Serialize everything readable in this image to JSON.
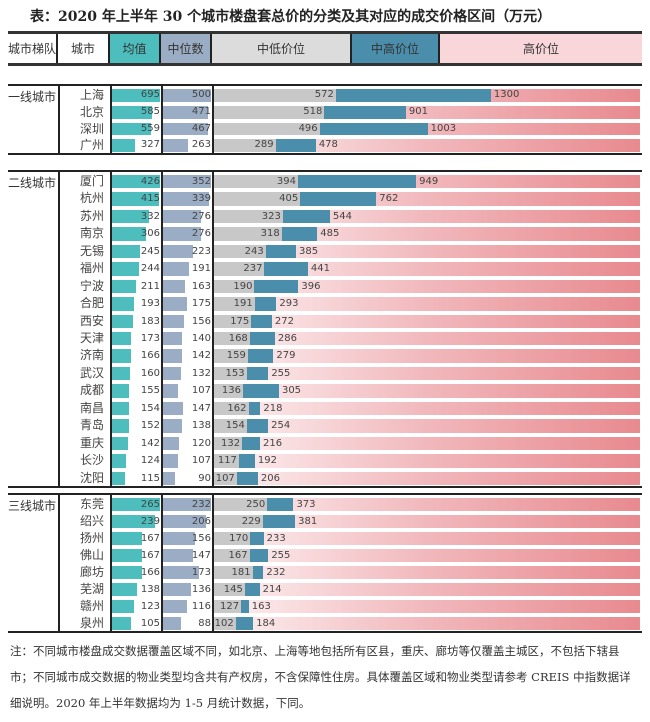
{
  "title": "表：2020 年上半年 30 个城市楼盘套总价的分类及其对应的成交价格区间（万元）",
  "chart_data": {
    "type": "bar",
    "title": "表：2020 年上半年 30 个城市楼盘套总价的分类及其对应的成交价格区间（万元）",
    "columns": [
      "城市梯队",
      "城市",
      "均值",
      "中位数",
      "中低价位",
      "中高价位",
      "高价位"
    ],
    "colors": {
      "mean": "#4dbdbd",
      "median": "#9badc4",
      "low": "#c8c8c8",
      "midhigh": "#4b8eab",
      "high": "#f0a6ab"
    },
    "groups": [
      {
        "tier": "一线城市",
        "rows": [
          {
            "city": "上海",
            "mean": 695,
            "median": 500,
            "low": 572,
            "high": 1300
          },
          {
            "city": "北京",
            "mean": 585,
            "median": 471,
            "low": 518,
            "high": 901
          },
          {
            "city": "深圳",
            "mean": 559,
            "median": 467,
            "low": 496,
            "high": 1003
          },
          {
            "city": "广州",
            "mean": 327,
            "median": 263,
            "low": 289,
            "high": 478
          }
        ]
      },
      {
        "tier": "二线城市",
        "rows": [
          {
            "city": "厦门",
            "mean": 426,
            "median": 352,
            "low": 394,
            "high": 949
          },
          {
            "city": "杭州",
            "mean": 415,
            "median": 339,
            "low": 405,
            "high": 762
          },
          {
            "city": "苏州",
            "mean": 332,
            "median": 276,
            "low": 323,
            "high": 544
          },
          {
            "city": "南京",
            "mean": 306,
            "median": 276,
            "low": 318,
            "high": 485
          },
          {
            "city": "无锡",
            "mean": 245,
            "median": 223,
            "low": 243,
            "high": 385
          },
          {
            "city": "福州",
            "mean": 244,
            "median": 191,
            "low": 237,
            "high": 441
          },
          {
            "city": "宁波",
            "mean": 211,
            "median": 163,
            "low": 190,
            "high": 396
          },
          {
            "city": "合肥",
            "mean": 193,
            "median": 175,
            "low": 191,
            "high": 293
          },
          {
            "city": "西安",
            "mean": 183,
            "median": 156,
            "low": 175,
            "high": 272
          },
          {
            "city": "天津",
            "mean": 173,
            "median": 140,
            "low": 168,
            "high": 286
          },
          {
            "city": "济南",
            "mean": 166,
            "median": 142,
            "low": 159,
            "high": 279
          },
          {
            "city": "武汉",
            "mean": 160,
            "median": 132,
            "low": 153,
            "high": 255
          },
          {
            "city": "成都",
            "mean": 155,
            "median": 107,
            "low": 136,
            "high": 305
          },
          {
            "city": "南昌",
            "mean": 154,
            "median": 147,
            "low": 162,
            "high": 218
          },
          {
            "city": "青岛",
            "mean": 152,
            "median": 138,
            "low": 154,
            "high": 254
          },
          {
            "city": "重庆",
            "mean": 142,
            "median": 120,
            "low": 132,
            "high": 216
          },
          {
            "city": "长沙",
            "mean": 124,
            "median": 107,
            "low": 117,
            "high": 192
          },
          {
            "city": "沈阳",
            "mean": 115,
            "median": 90,
            "low": 107,
            "high": 206
          }
        ]
      },
      {
        "tier": "三线城市",
        "rows": [
          {
            "city": "东莞",
            "mean": 265,
            "median": 232,
            "low": 250,
            "high": 373
          },
          {
            "city": "绍兴",
            "mean": 239,
            "median": 206,
            "low": 229,
            "high": 381
          },
          {
            "city": "扬州",
            "mean": 167,
            "median": 156,
            "low": 170,
            "high": 233
          },
          {
            "city": "佛山",
            "mean": 167,
            "median": 147,
            "low": 167,
            "high": 255
          },
          {
            "city": "廊坊",
            "mean": 166,
            "median": 173,
            "low": 181,
            "high": 232
          },
          {
            "city": "芜湖",
            "mean": 138,
            "median": 136,
            "low": 145,
            "high": 214
          },
          {
            "city": "赣州",
            "mean": 123,
            "median": 116,
            "low": 127,
            "high": 163
          },
          {
            "city": "泉州",
            "mean": 105,
            "median": 88,
            "low": 102,
            "high": 184
          }
        ]
      }
    ]
  },
  "note": "注：不同城市楼盘成交数据覆盖区域不同，如北京、上海等地包括所有区县，重庆、廊坊等仅覆盖主城区，不包括下辖县市；不同城市成交数据的物业类型均含共有产权房，不含保障性住房。具体覆盖区域和物业类型请参考 CREIS 中指数据详细说明。2020 年上半年数据均为 1-5 月统计数据，下同。"
}
